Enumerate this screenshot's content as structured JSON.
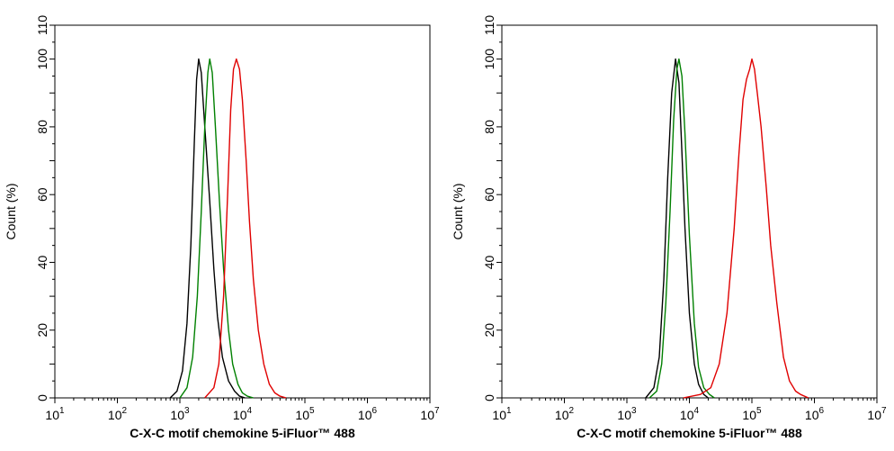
{
  "chart_data": [
    {
      "type": "line",
      "title": "",
      "xlabel": "C-X-C motif chemokine 5-iFluor™ 488",
      "ylabel": "Count  (%)",
      "xscale": "log",
      "xlim": [
        10,
        10000000
      ],
      "ylim": [
        0,
        110
      ],
      "xticks": [
        "10^1",
        "10^2",
        "10^3",
        "10^4",
        "10^5",
        "10^6",
        "10^7"
      ],
      "yticks": [
        0,
        20,
        40,
        60,
        80,
        100,
        110
      ],
      "grid": false,
      "legend": "none",
      "series": [
        {
          "color": "#000000",
          "peak": 2000,
          "points": [
            [
              700,
              0
            ],
            [
              900,
              2
            ],
            [
              1100,
              8
            ],
            [
              1300,
              22
            ],
            [
              1500,
              45
            ],
            [
              1700,
              75
            ],
            [
              1850,
              94
            ],
            [
              2000,
              100
            ],
            [
              2200,
              96
            ],
            [
              2500,
              80
            ],
            [
              3000,
              58
            ],
            [
              3500,
              38
            ],
            [
              4000,
              24
            ],
            [
              4800,
              12
            ],
            [
              6000,
              5
            ],
            [
              7500,
              2
            ],
            [
              9000,
              0.5
            ],
            [
              11000,
              0
            ]
          ]
        },
        {
          "color": "#008000",
          "peak": 3000,
          "points": [
            [
              1000,
              0
            ],
            [
              1300,
              3
            ],
            [
              1600,
              12
            ],
            [
              1900,
              30
            ],
            [
              2200,
              55
            ],
            [
              2500,
              80
            ],
            [
              2800,
              96
            ],
            [
              3000,
              100
            ],
            [
              3300,
              96
            ],
            [
              3700,
              80
            ],
            [
              4300,
              58
            ],
            [
              5000,
              38
            ],
            [
              6000,
              20
            ],
            [
              7000,
              10
            ],
            [
              8500,
              4
            ],
            [
              10000,
              1.5
            ],
            [
              12000,
              0.5
            ],
            [
              15000,
              0
            ]
          ]
        },
        {
          "color": "#e00000",
          "peak": 8000,
          "points": [
            [
              2500,
              0
            ],
            [
              3500,
              3
            ],
            [
              4200,
              10
            ],
            [
              5000,
              30
            ],
            [
              5800,
              60
            ],
            [
              6500,
              85
            ],
            [
              7200,
              97
            ],
            [
              8000,
              100
            ],
            [
              9000,
              97
            ],
            [
              10000,
              88
            ],
            [
              11500,
              70
            ],
            [
              13000,
              52
            ],
            [
              15000,
              35
            ],
            [
              18000,
              20
            ],
            [
              22000,
              10
            ],
            [
              27000,
              4
            ],
            [
              33000,
              1.5
            ],
            [
              40000,
              0.5
            ],
            [
              50000,
              0
            ]
          ]
        }
      ]
    },
    {
      "type": "line",
      "title": "",
      "xlabel": "C-X-C motif chemokine 5-iFluor™ 488",
      "ylabel": "Count  (%)",
      "xscale": "log",
      "xlim": [
        10,
        10000000
      ],
      "ylim": [
        0,
        110
      ],
      "xticks": [
        "10^1",
        "10^2",
        "10^3",
        "10^4",
        "10^5",
        "10^6",
        "10^7"
      ],
      "yticks": [
        0,
        20,
        40,
        60,
        80,
        100,
        110
      ],
      "grid": false,
      "legend": "none",
      "series": [
        {
          "color": "#000000",
          "peak": 6000,
          "points": [
            [
              2000,
              0
            ],
            [
              2700,
              3
            ],
            [
              3300,
              12
            ],
            [
              3900,
              35
            ],
            [
              4500,
              65
            ],
            [
              5200,
              90
            ],
            [
              6000,
              100
            ],
            [
              6800,
              93
            ],
            [
              7500,
              75
            ],
            [
              8500,
              50
            ],
            [
              10000,
              25
            ],
            [
              12000,
              10
            ],
            [
              14000,
              4
            ],
            [
              17000,
              1
            ],
            [
              20000,
              0
            ]
          ]
        },
        {
          "color": "#008000",
          "peak": 6800,
          "points": [
            [
              2300,
              0
            ],
            [
              3000,
              2
            ],
            [
              3600,
              10
            ],
            [
              4200,
              28
            ],
            [
              4900,
              55
            ],
            [
              5600,
              82
            ],
            [
              6300,
              97
            ],
            [
              6800,
              100
            ],
            [
              7600,
              95
            ],
            [
              8500,
              78
            ],
            [
              10000,
              48
            ],
            [
              12000,
              22
            ],
            [
              14000,
              9
            ],
            [
              17000,
              3
            ],
            [
              21000,
              1
            ],
            [
              25000,
              0
            ]
          ]
        },
        {
          "color": "#e00000",
          "peak": 100000,
          "points": [
            [
              8000,
              0
            ],
            [
              15000,
              1
            ],
            [
              22000,
              3
            ],
            [
              30000,
              10
            ],
            [
              40000,
              25
            ],
            [
              52000,
              50
            ],
            [
              62000,
              72
            ],
            [
              72000,
              88
            ],
            [
              82000,
              94
            ],
            [
              92000,
              97
            ],
            [
              100000,
              100
            ],
            [
              110000,
              97
            ],
            [
              122000,
              90
            ],
            [
              140000,
              80
            ],
            [
              170000,
              62
            ],
            [
              200000,
              45
            ],
            [
              250000,
              28
            ],
            [
              320000,
              12
            ],
            [
              400000,
              5
            ],
            [
              500000,
              2
            ],
            [
              600000,
              1
            ],
            [
              800000,
              0
            ]
          ]
        }
      ]
    }
  ]
}
